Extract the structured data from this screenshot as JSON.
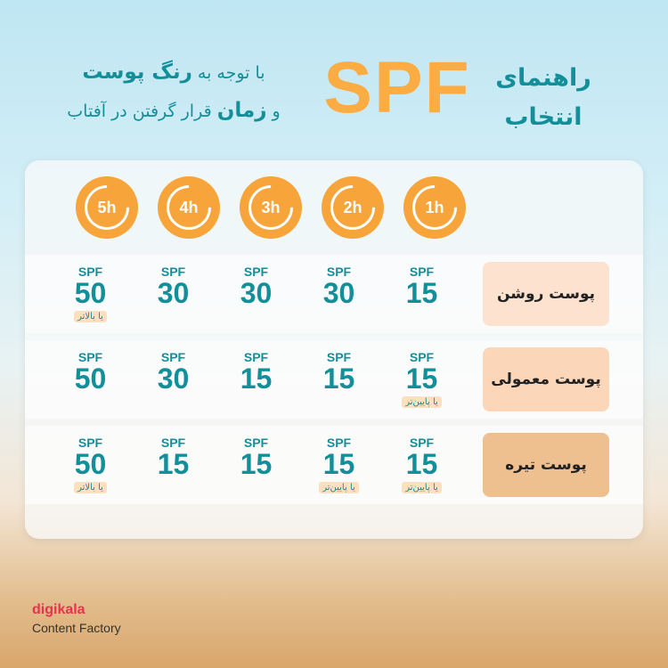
{
  "header": {
    "title": "راهنمای انتخاب",
    "brand_word": "SPF",
    "subtitle_line1_pre": "با توجه به",
    "subtitle_line1_bold": "رنگ پوست",
    "subtitle_line2_pre": "و",
    "subtitle_line2_bold": "زمان",
    "subtitle_line2_post": "قرار گرفتن در آفتاب"
  },
  "hours": [
    "1h",
    "2h",
    "3h",
    "4h",
    "5h"
  ],
  "colors": {
    "teal": "#138f9a",
    "orange": "#fbac43"
  },
  "rows": [
    {
      "label": "پوست روشن",
      "color": "#fde3cf",
      "cells": [
        {
          "prefix": "SPF",
          "value": "15"
        },
        {
          "prefix": "SPF",
          "value": "30"
        },
        {
          "prefix": "SPF",
          "value": "30"
        },
        {
          "prefix": "SPF",
          "value": "30"
        },
        {
          "prefix": "SPF",
          "value": "50",
          "note": "یا بالاتر"
        }
      ]
    },
    {
      "label": "پوست معمولی",
      "color": "#fbd6b8",
      "cells": [
        {
          "prefix": "SPF",
          "value": "15",
          "note": "یا پایین‌تر"
        },
        {
          "prefix": "SPF",
          "value": "15"
        },
        {
          "prefix": "SPF",
          "value": "15"
        },
        {
          "prefix": "SPF",
          "value": "30"
        },
        {
          "prefix": "SPF",
          "value": "50"
        }
      ]
    },
    {
      "label": "پوست تیره",
      "color": "#eec08f",
      "cells": [
        {
          "prefix": "SPF",
          "value": "15",
          "note": "یا پایین‌تر"
        },
        {
          "prefix": "SPF",
          "value": "15",
          "note": "یا پایین‌تر"
        },
        {
          "prefix": "SPF",
          "value": "15"
        },
        {
          "prefix": "SPF",
          "value": "15"
        },
        {
          "prefix": "SPF",
          "value": "50",
          "note": "یا بالاتر"
        }
      ]
    }
  ],
  "footer": {
    "brand": "digikala",
    "tagline": "Content Factory"
  }
}
